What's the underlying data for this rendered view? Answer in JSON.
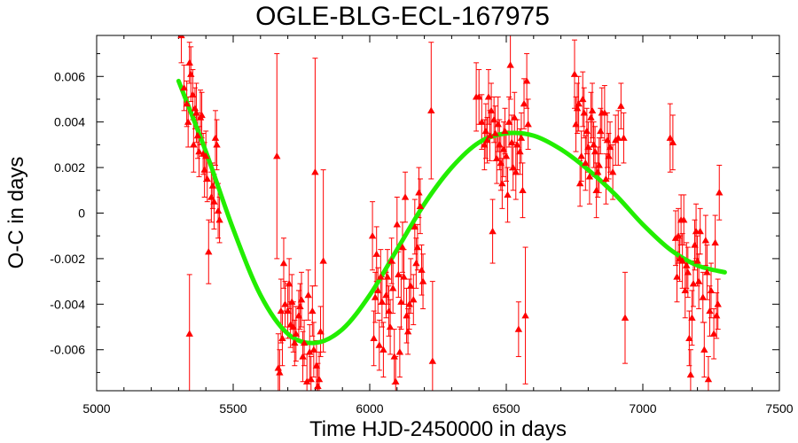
{
  "chart_data": {
    "type": "scatter",
    "title": "OGLE-BLG-ECL-167975",
    "xlabel": "Time HJD-2450000 in days",
    "ylabel": "O-C in days",
    "xlim": [
      5000,
      7500
    ],
    "ylim": [
      -0.0078,
      0.0078
    ],
    "xticks": [
      5000,
      5500,
      6000,
      6500,
      7000,
      7500
    ],
    "yticks": [
      -0.006,
      -0.004,
      -0.002,
      0,
      0.002,
      0.004,
      0.006
    ],
    "ytick_labels": [
      "-0.006",
      "-0.004",
      "-0.002",
      "0",
      "0.002",
      "0.004",
      "0.006"
    ],
    "grid": false,
    "legend": "none",
    "series": [
      {
        "kind": "points-with-errorbars",
        "color": "#ff0000",
        "marker": "triangle",
        "points": [
          [
            5310,
            0.0078,
            0.0012
          ],
          [
            5320,
            0.0055,
            0.001
          ],
          [
            5330,
            0.0048,
            0.001
          ],
          [
            5335,
            0.004,
            0.0011
          ],
          [
            5340,
            0.0066,
            0.0009
          ],
          [
            5345,
            0.0061,
            0.0012
          ],
          [
            5352,
            0.0052,
            0.0011
          ],
          [
            5355,
            0.003,
            0.0012
          ],
          [
            5360,
            0.0046,
            0.0009
          ],
          [
            5365,
            0.0044,
            0.0013
          ],
          [
            5370,
            0.0034,
            0.001
          ],
          [
            5375,
            0.0027,
            0.0011
          ],
          [
            5380,
            0.0042,
            0.0012
          ],
          [
            5385,
            0.0043,
            0.001
          ],
          [
            5390,
            0.0026,
            0.0009
          ],
          [
            5395,
            0.0019,
            0.0012
          ],
          [
            5400,
            0.0025,
            0.0011
          ],
          [
            5405,
            0.0015,
            0.001
          ],
          [
            5410,
            -0.0017,
            0.0014
          ],
          [
            5420,
            0.0007,
            0.0011
          ],
          [
            5425,
            0.0012,
            0.001
          ],
          [
            5430,
            0.0005,
            0.0012
          ],
          [
            5435,
            0.0033,
            0.0012
          ],
          [
            5440,
            0.003,
            0.0011
          ],
          [
            5445,
            0.0001,
            0.0012
          ],
          [
            5450,
            -0.0003,
            0.001
          ],
          [
            5340,
            -0.0053,
            0.0026
          ],
          [
            5660,
            0.0025,
            0.0045
          ],
          [
            5665,
            -0.0068,
            0.0015
          ],
          [
            5670,
            -0.007,
            0.001
          ],
          [
            5675,
            -0.0043,
            0.0014
          ],
          [
            5680,
            -0.0055,
            0.0012
          ],
          [
            5685,
            -0.0022,
            0.0011
          ],
          [
            5690,
            -0.004,
            0.001
          ],
          [
            5700,
            -0.0043,
            0.0012
          ],
          [
            5705,
            -0.0031,
            0.0011
          ],
          [
            5710,
            -0.0049,
            0.001
          ],
          [
            5715,
            -0.0039,
            0.0012
          ],
          [
            5720,
            -0.005,
            0.0011
          ],
          [
            5725,
            -0.0057,
            0.001
          ],
          [
            5730,
            -0.0053,
            0.0012
          ],
          [
            5740,
            -0.0045,
            0.0011
          ],
          [
            5745,
            -0.0041,
            0.001
          ],
          [
            5750,
            -0.0038,
            0.0012
          ],
          [
            5755,
            -0.0063,
            0.0011
          ],
          [
            5760,
            -0.0057,
            0.001
          ],
          [
            5770,
            -0.0074,
            0.0012
          ],
          [
            5775,
            -0.0036,
            0.0011
          ],
          [
            5780,
            -0.0061,
            0.0012
          ],
          [
            5785,
            -0.0073,
            0.001
          ],
          [
            5790,
            -0.0043,
            0.0011
          ],
          [
            5795,
            -0.006,
            0.0012
          ],
          [
            5800,
            0.0018,
            0.005
          ],
          [
            5805,
            -0.0067,
            0.0011
          ],
          [
            5810,
            -0.0076,
            0.001
          ],
          [
            5815,
            -0.0073,
            0.0012
          ],
          [
            5820,
            -0.0052,
            0.0011
          ],
          [
            5830,
            -0.0021,
            0.004
          ],
          [
            6010,
            -0.001,
            0.0015
          ],
          [
            6015,
            -0.0055,
            0.0012
          ],
          [
            6020,
            -0.0037,
            0.0011
          ],
          [
            6025,
            -0.0018,
            0.0012
          ],
          [
            6030,
            -0.0034,
            0.001
          ],
          [
            6035,
            -0.0058,
            0.0011
          ],
          [
            6040,
            -0.0028,
            0.0012
          ],
          [
            6045,
            -0.0039,
            0.0011
          ],
          [
            6050,
            -0.006,
            0.0012
          ],
          [
            6060,
            -0.0036,
            0.001
          ],
          [
            6065,
            -0.0028,
            0.0012
          ],
          [
            6070,
            -0.0043,
            0.0011
          ],
          [
            6075,
            -0.005,
            0.0012
          ],
          [
            6080,
            -0.0021,
            0.001
          ],
          [
            6085,
            -0.0033,
            0.0011
          ],
          [
            6090,
            -0.0063,
            0.0012
          ],
          [
            6095,
            -0.0074,
            0.0011
          ],
          [
            6100,
            -0.0005,
            0.0012
          ],
          [
            6105,
            -0.0027,
            0.001
          ],
          [
            6110,
            -0.0061,
            0.0011
          ],
          [
            6115,
            -0.0039,
            0.0012
          ],
          [
            6120,
            -0.0015,
            0.0011
          ],
          [
            6125,
            -0.0028,
            0.0012
          ],
          [
            6130,
            0.0007,
            0.0011
          ],
          [
            6135,
            -0.0045,
            0.0012
          ],
          [
            6140,
            -0.0052,
            0.001
          ],
          [
            6145,
            -0.004,
            0.0011
          ],
          [
            6150,
            -0.0032,
            0.0012
          ],
          [
            6160,
            -0.0038,
            0.0011
          ],
          [
            6165,
            -0.0006,
            0.0012
          ],
          [
            6170,
            -0.0022,
            0.0011
          ],
          [
            6175,
            -0.0015,
            0.001
          ],
          [
            6180,
            0.0009,
            0.0011
          ],
          [
            6185,
            0.0003,
            0.0012
          ],
          [
            6190,
            -0.0025,
            0.0011
          ],
          [
            6195,
            -0.003,
            0.0012
          ],
          [
            6225,
            0.0045,
            0.003
          ],
          [
            6230,
            -0.0065,
            0.0035
          ],
          [
            6390,
            0.0051,
            0.0015
          ],
          [
            6400,
            0.0051,
            0.0012
          ],
          [
            6410,
            0.004,
            0.0012
          ],
          [
            6420,
            0.003,
            0.0011
          ],
          [
            6425,
            0.0036,
            0.0012
          ],
          [
            6430,
            0.0032,
            0.001
          ],
          [
            6435,
            0.0051,
            0.0012
          ],
          [
            6440,
            0.0034,
            0.0011
          ],
          [
            6445,
            0.0045,
            0.0012
          ],
          [
            6450,
            -0.0008,
            0.0014
          ],
          [
            6455,
            0.0041,
            0.001
          ],
          [
            6460,
            0.0035,
            0.0012
          ],
          [
            6465,
            0.0024,
            0.0011
          ],
          [
            6470,
            0.0039,
            0.0012
          ],
          [
            6475,
            0.003,
            0.0011
          ],
          [
            6480,
            0.0022,
            0.0012
          ],
          [
            6485,
            0.0013,
            0.0011
          ],
          [
            6490,
            0.0028,
            0.0012
          ],
          [
            6495,
            0.0036,
            0.001
          ],
          [
            6500,
            0.0025,
            0.0011
          ],
          [
            6505,
            0.0008,
            0.0012
          ],
          [
            6510,
            0.004,
            0.0011
          ],
          [
            6515,
            0.0065,
            0.0015
          ],
          [
            6520,
            0.0031,
            0.0012
          ],
          [
            6525,
            0.002,
            0.001
          ],
          [
            6530,
            0.0042,
            0.0011
          ],
          [
            6535,
            0.0018,
            0.0012
          ],
          [
            6540,
            0.003,
            0.0011
          ],
          [
            6545,
            -0.0051,
            0.0012
          ],
          [
            6550,
            0.0027,
            0.001
          ],
          [
            6555,
            0.0033,
            0.0011
          ],
          [
            6560,
            0.001,
            0.0012
          ],
          [
            6565,
            0.0048,
            0.0011
          ],
          [
            6570,
            -0.0045,
            0.003
          ],
          [
            6575,
            0.0058,
            0.0012
          ],
          [
            6580,
            0.0039,
            0.0011
          ],
          [
            6750,
            0.0061,
            0.0015
          ],
          [
            6755,
            0.0039,
            0.0012
          ],
          [
            6760,
            0.0046,
            0.0011
          ],
          [
            6765,
            0.0048,
            0.0012
          ],
          [
            6770,
            0.0013,
            0.001
          ],
          [
            6775,
            0.0025,
            0.0011
          ],
          [
            6780,
            0.005,
            0.0012
          ],
          [
            6785,
            0.0044,
            0.0011
          ],
          [
            6790,
            0.0022,
            0.0012
          ],
          [
            6795,
            0.0036,
            0.001
          ],
          [
            6800,
            0.0029,
            0.0011
          ],
          [
            6805,
            0.0016,
            0.0012
          ],
          [
            6810,
            0.0042,
            0.0011
          ],
          [
            6815,
            0.0045,
            0.0012
          ],
          [
            6820,
            0.003,
            0.001
          ],
          [
            6825,
            0.0027,
            0.0011
          ],
          [
            6830,
            0.001,
            0.0012
          ],
          [
            6835,
            0.0018,
            0.0011
          ],
          [
            6840,
            0.0021,
            0.0012
          ],
          [
            6845,
            0.0036,
            0.001
          ],
          [
            6850,
            0.0044,
            0.0011
          ],
          [
            6860,
            0.0044,
            0.0012
          ],
          [
            6865,
            0.0015,
            0.0011
          ],
          [
            6870,
            0.0032,
            0.0012
          ],
          [
            6875,
            0.0025,
            0.001
          ],
          [
            6880,
            0.0029,
            0.0011
          ],
          [
            6890,
            0.0018,
            0.0012
          ],
          [
            6900,
            0.0032,
            0.0011
          ],
          [
            6910,
            0.0033,
            0.0012
          ],
          [
            6920,
            0.0047,
            0.001
          ],
          [
            6930,
            0.0033,
            0.0011
          ],
          [
            6935,
            -0.0046,
            0.002
          ],
          [
            7100,
            0.0033,
            0.0015
          ],
          [
            7110,
            0.0031,
            0.0012
          ],
          [
            7120,
            -0.0011,
            0.0012
          ],
          [
            7125,
            -0.0028,
            0.0011
          ],
          [
            7130,
            -0.001,
            0.0012
          ],
          [
            7135,
            -0.002,
            0.001
          ],
          [
            7140,
            -0.0003,
            0.0011
          ],
          [
            7145,
            -0.0021,
            0.0012
          ],
          [
            7150,
            -0.0003,
            0.0011
          ],
          [
            7155,
            -0.0034,
            0.0012
          ],
          [
            7160,
            -0.0023,
            0.001
          ],
          [
            7165,
            -0.0026,
            0.0011
          ],
          [
            7170,
            -0.0055,
            0.0012
          ],
          [
            7175,
            -0.0071,
            0.0011
          ],
          [
            7180,
            -0.0046,
            0.0012
          ],
          [
            7185,
            -0.0031,
            0.001
          ],
          [
            7190,
            -0.0014,
            0.0011
          ],
          [
            7195,
            -0.0008,
            0.0012
          ],
          [
            7200,
            -0.0021,
            0.0011
          ],
          [
            7205,
            -0.003,
            0.0012
          ],
          [
            7210,
            -0.0008,
            0.001
          ],
          [
            7220,
            -0.0037,
            0.0011
          ],
          [
            7225,
            -0.006,
            0.0012
          ],
          [
            7230,
            -0.0012,
            0.0011
          ],
          [
            7235,
            -0.0026,
            0.0012
          ],
          [
            7240,
            -0.0073,
            0.001
          ],
          [
            7245,
            -0.0043,
            0.0011
          ],
          [
            7250,
            -0.0034,
            0.0012
          ],
          [
            7260,
            -0.0053,
            0.0011
          ],
          [
            7265,
            -0.0013,
            0.0012
          ],
          [
            7270,
            -0.0045,
            0.001
          ],
          [
            7275,
            -0.004,
            0.0011
          ],
          [
            7280,
            0.0009,
            0.0012
          ]
        ]
      },
      {
        "kind": "fit-curve",
        "color": "#22ee00",
        "x": [
          5300,
          5400,
          5500,
          5600,
          5700,
          5800,
          5900,
          6000,
          6100,
          6200,
          6300,
          6400,
          6500,
          6600,
          6700,
          6800,
          6900,
          7000,
          7100,
          7200,
          7300
        ],
        "y": [
          0.0058,
          0.0027,
          -0.0007,
          -0.0036,
          -0.0053,
          -0.0057,
          -0.0051,
          -0.0036,
          -0.0016,
          0.0004,
          0.002,
          0.0031,
          0.0035,
          0.0034,
          0.0028,
          0.0019,
          0.0008,
          -0.0005,
          -0.0016,
          -0.0023,
          -0.0026
        ]
      }
    ]
  }
}
